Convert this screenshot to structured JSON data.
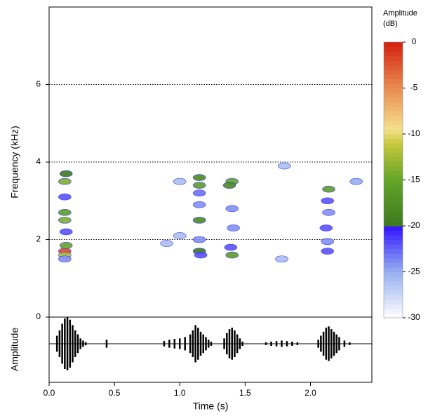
{
  "chart_data": [
    {
      "type": "spectrogram",
      "ylabel": "Frequency (kHz)",
      "ylim": [
        0,
        8
      ],
      "yticks": [
        0,
        2,
        4,
        6
      ],
      "grid": true,
      "xlim": [
        0,
        2.47
      ],
      "colorbar_title": [
        "Amplitude",
        "(dB)"
      ],
      "clim": [
        -30,
        0
      ],
      "cticks": [
        0,
        -5,
        -10,
        -15,
        -20,
        -25,
        -30
      ],
      "x": [
        0.12,
        0.12,
        0.13,
        0.12,
        0.12,
        0.13,
        0.12,
        0.12,
        0.13,
        0.12,
        1.15,
        1.15,
        1.15,
        1.15,
        1.16,
        1.15,
        1.15,
        1.15,
        0.9,
        1.0,
        1.4,
        1.38,
        1.4,
        1.39,
        1.41,
        1.4,
        2.14,
        2.13,
        2.12,
        2.13,
        2.14,
        2.13,
        1.8,
        2.35,
        1.0,
        1.78
      ],
      "y": [
        1.7,
        1.6,
        1.85,
        2.5,
        2.7,
        2.2,
        3.1,
        3.5,
        3.7,
        1.5,
        3.4,
        3.6,
        2.5,
        1.7,
        1.6,
        2.0,
        2.9,
        3.2,
        1.9,
        2.1,
        3.5,
        3.4,
        1.6,
        1.8,
        2.3,
        2.8,
        3.3,
        3.0,
        2.3,
        1.7,
        2.7,
        1.95,
        3.9,
        3.5,
        3.5,
        1.5
      ],
      "values": [
        -2,
        -12,
        -15,
        -14,
        -16,
        -22,
        -22,
        -14,
        -20,
        -24,
        -16,
        -18,
        -18,
        -20,
        -22,
        -24,
        -24,
        -23,
        -26,
        -26,
        -15,
        -18,
        -16,
        -22,
        -24,
        -24,
        -16,
        -22,
        -22,
        -22,
        -24,
        -24,
        -26,
        -25,
        -26,
        -26
      ]
    },
    {
      "type": "waveform",
      "xlabel": "Time (s)",
      "ylabel": "Amplitude",
      "xlim": [
        0,
        2.47
      ],
      "xticks": [
        {
          "value": 0,
          "label": "0.0"
        },
        0.5,
        {
          "value": 1,
          "label": "1.0"
        },
        1.5,
        {
          "value": 2,
          "label": "2.0"
        }
      ],
      "ylim": [
        -1.45,
        1
      ],
      "color": "#000000",
      "x": [
        0.06,
        0.08,
        0.1,
        0.12,
        0.14,
        0.16,
        0.18,
        0.2,
        0.22,
        0.24,
        0.26,
        0.28,
        0.44,
        0.88,
        0.92,
        0.96,
        1.0,
        1.04,
        1.08,
        1.1,
        1.12,
        1.14,
        1.16,
        1.18,
        1.2,
        1.22,
        1.24,
        1.34,
        1.36,
        1.38,
        1.4,
        1.42,
        1.44,
        1.46,
        1.48,
        1.66,
        1.7,
        1.74,
        1.78,
        1.82,
        1.86,
        1.9,
        2.06,
        2.08,
        2.1,
        2.12,
        2.14,
        2.16,
        2.18,
        2.2,
        2.22,
        2.26,
        2.3
      ],
      "values": [
        0.3,
        0.5,
        0.75,
        0.95,
        1.0,
        0.9,
        0.7,
        0.5,
        0.35,
        0.2,
        0.12,
        0.06,
        0.15,
        0.1,
        0.15,
        0.18,
        0.2,
        0.25,
        0.35,
        0.5,
        0.7,
        0.6,
        0.45,
        0.35,
        0.25,
        0.15,
        0.08,
        0.2,
        0.4,
        0.55,
        0.6,
        0.5,
        0.35,
        0.2,
        0.08,
        0.05,
        0.08,
        0.1,
        0.12,
        0.1,
        0.08,
        0.05,
        0.15,
        0.3,
        0.45,
        0.6,
        0.65,
        0.55,
        0.45,
        0.35,
        0.25,
        0.12,
        0.05
      ]
    }
  ]
}
